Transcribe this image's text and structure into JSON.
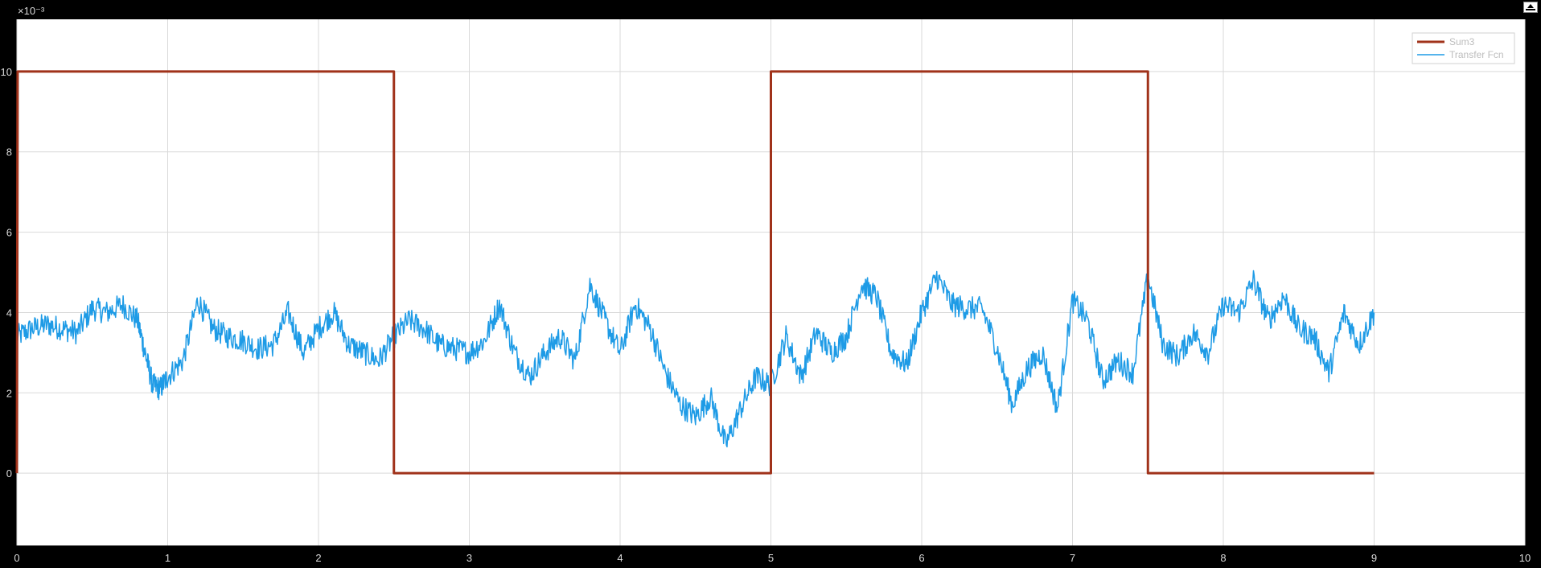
{
  "window": {
    "undock_icon": "undock-arrow-icon"
  },
  "colors": {
    "background": "#000000",
    "axes_bg": "#ffffff",
    "grid": "#d9d9d9",
    "tick_text": "#d9d9d9"
  },
  "chart_data": {
    "type": "line",
    "title": "",
    "xlabel": "",
    "ylabel": "",
    "xlim": [
      0,
      10
    ],
    "ylim": [
      -0.0018,
      0.0113
    ],
    "y_exponent_label": "×10⁻³",
    "y_scale_factor": 0.001,
    "x_ticks": [
      0,
      1,
      2,
      3,
      4,
      5,
      6,
      7,
      8,
      9,
      10
    ],
    "y_ticks": [
      0,
      2,
      4,
      6,
      8,
      10
    ],
    "grid": true,
    "legend_position": "top-right",
    "series": [
      {
        "name": "Sum3",
        "color": "#a0321a",
        "x": [
          0,
          0.005,
          2.5,
          2.5,
          2.5,
          5.0,
          5.0,
          7.5,
          7.5,
          7.5,
          9.0
        ],
        "y": [
          0,
          0.01,
          0.01,
          0.0053,
          0,
          0,
          0.01,
          0.01,
          0.0053,
          0,
          0
        ]
      },
      {
        "name": "Transfer Fcn",
        "color": "#1e9be6",
        "x": [
          0,
          0.1,
          0.2,
          0.3,
          0.4,
          0.5,
          0.6,
          0.7,
          0.8,
          0.85,
          0.9,
          0.95,
          1.0,
          1.1,
          1.2,
          1.3,
          1.4,
          1.5,
          1.6,
          1.7,
          1.8,
          1.9,
          2.0,
          2.1,
          2.2,
          2.3,
          2.4,
          2.5,
          2.6,
          2.7,
          2.8,
          2.9,
          3.0,
          3.1,
          3.2,
          3.3,
          3.4,
          3.5,
          3.6,
          3.7,
          3.8,
          3.9,
          4.0,
          4.1,
          4.2,
          4.3,
          4.4,
          4.5,
          4.6,
          4.7,
          4.8,
          4.9,
          5.0,
          5.1,
          5.2,
          5.3,
          5.4,
          5.5,
          5.6,
          5.7,
          5.8,
          5.9,
          6.0,
          6.1,
          6.2,
          6.3,
          6.4,
          6.5,
          6.6,
          6.7,
          6.8,
          6.9,
          7.0,
          7.1,
          7.2,
          7.3,
          7.4,
          7.5,
          7.6,
          7.7,
          7.8,
          7.9,
          8.0,
          8.1,
          8.2,
          8.3,
          8.4,
          8.5,
          8.6,
          8.7,
          8.8,
          8.9,
          9.0
        ],
        "y": [
          0.0034,
          0.0036,
          0.0037,
          0.0036,
          0.0035,
          0.0041,
          0.004,
          0.0042,
          0.0038,
          0.003,
          0.0022,
          0.0021,
          0.0024,
          0.0028,
          0.0043,
          0.0036,
          0.0034,
          0.0033,
          0.0031,
          0.0032,
          0.004,
          0.003,
          0.0036,
          0.004,
          0.0032,
          0.003,
          0.0028,
          0.0034,
          0.0038,
          0.0036,
          0.0032,
          0.0031,
          0.003,
          0.0033,
          0.0042,
          0.003,
          0.0024,
          0.003,
          0.0034,
          0.0028,
          0.0047,
          0.0038,
          0.003,
          0.0042,
          0.0036,
          0.0025,
          0.0017,
          0.0014,
          0.0019,
          0.0007,
          0.0016,
          0.0024,
          0.0022,
          0.0034,
          0.0024,
          0.0035,
          0.003,
          0.0034,
          0.0047,
          0.0044,
          0.003,
          0.0027,
          0.004,
          0.0049,
          0.0042,
          0.0041,
          0.0041,
          0.0031,
          0.0017,
          0.0026,
          0.003,
          0.0016,
          0.0043,
          0.0038,
          0.0023,
          0.0028,
          0.0025,
          0.0049,
          0.0032,
          0.0029,
          0.0035,
          0.003,
          0.0042,
          0.004,
          0.0048,
          0.0038,
          0.0044,
          0.0036,
          0.0034,
          0.0025,
          0.004,
          0.0032,
          0.004
        ]
      }
    ]
  }
}
